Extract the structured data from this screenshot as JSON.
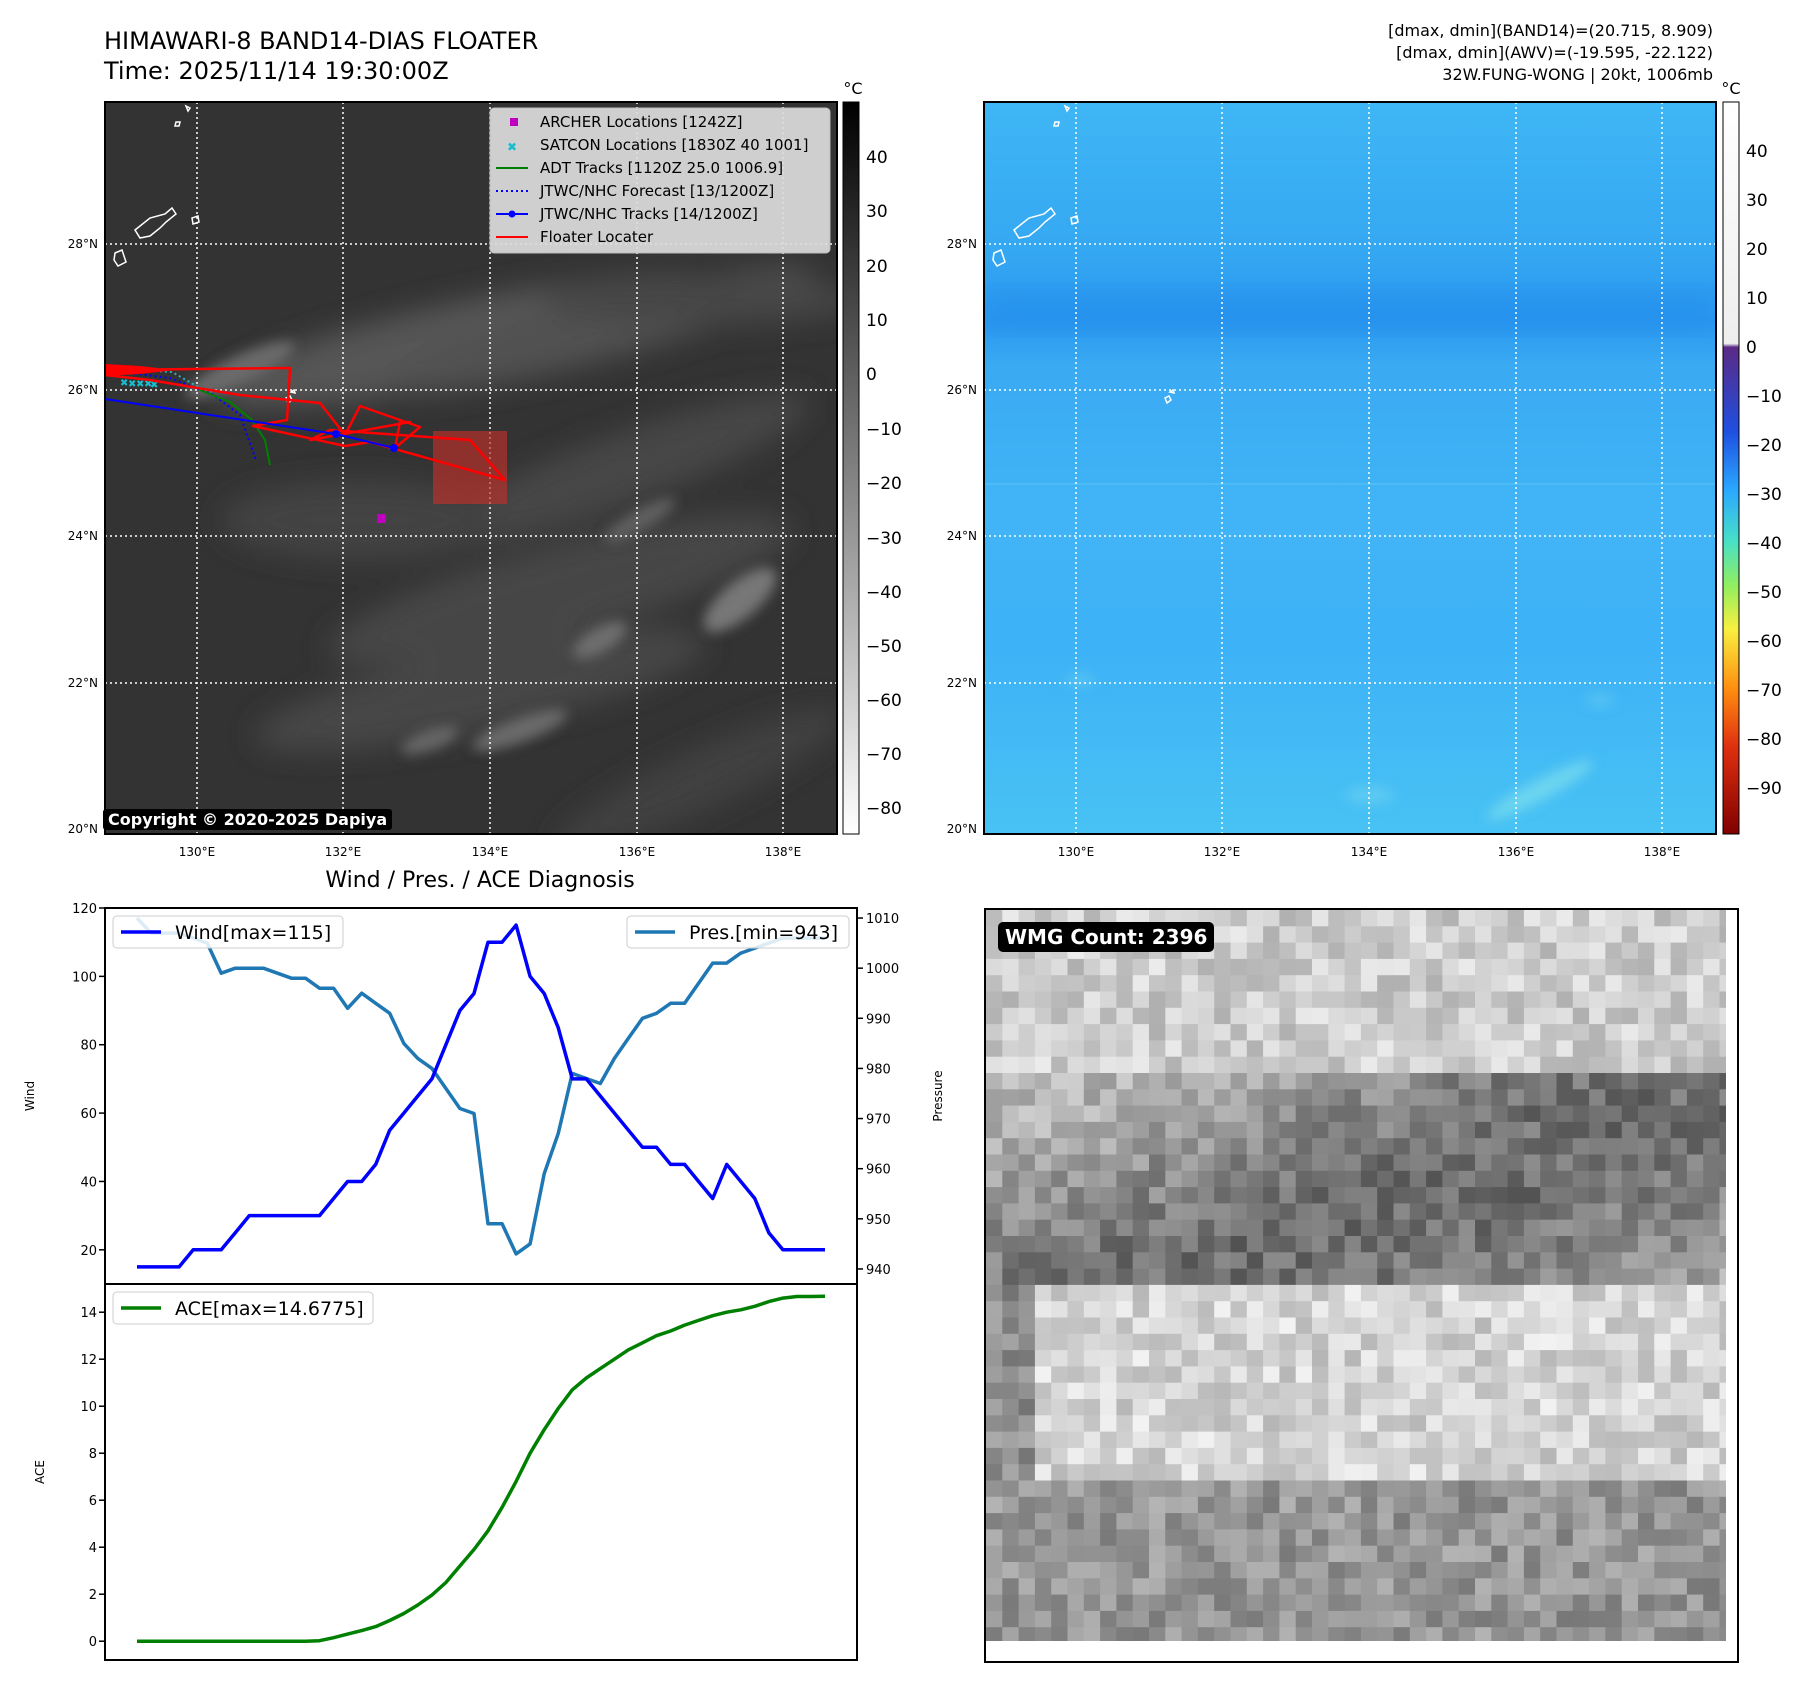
{
  "header": {
    "title_line1": "HIMAWARI-8 BAND14-DIAS FLOATER",
    "title_line2": "Time: 2025/11/14 19:30:00Z",
    "stats_line1": "[dmax, dmin](BAND14)=(20.715, 8.909)",
    "stats_line2": "[dmax, dmin](AWV)=(-19.595, -22.122)",
    "stats_line3": "32W.FUNG-WONG | 20kt, 1006mb"
  },
  "maps": {
    "lat_labels": [
      "28°N",
      "26°N",
      "24°N",
      "22°N",
      "20°N"
    ],
    "lon_labels": [
      "130°E",
      "132°E",
      "134°E",
      "136°E",
      "138°E"
    ],
    "copyright": "Copyright © 2020-2025 Dapiya",
    "colorbar_unit": "°C",
    "left_colorbar_ticks": [
      "40",
      "30",
      "20",
      "10",
      "0",
      "−10",
      "−20",
      "−30",
      "−40",
      "−50",
      "−60",
      "−70",
      "−80"
    ],
    "right_colorbar_ticks": [
      "40",
      "30",
      "20",
      "10",
      "0",
      "−10",
      "−20",
      "−30",
      "−40",
      "−50",
      "−60",
      "−70",
      "−80",
      "−90"
    ],
    "legend": [
      {
        "label": "ARCHER Locations [1242Z]",
        "color": "#c000c0"
      },
      {
        "label": "SATCON Locations [1830Z 40 1001]",
        "color": "#17becf"
      },
      {
        "label": "ADT Tracks [1120Z 25.0 1006.9]",
        "color": "#008000"
      },
      {
        "label": "JTWC/NHC Forecast [13/1200Z]",
        "color": "#0000ff"
      },
      {
        "label": "JTWC/NHC Tracks [14/1200Z]",
        "color": "#0000ff"
      },
      {
        "label": "Floater Locater",
        "color": "#ff0000"
      }
    ]
  },
  "wmg": {
    "label": "WMG Count: 2396"
  },
  "chart_data": [
    {
      "type": "line",
      "title": "Wind / Pres. / ACE Diagnosis",
      "ylabel": "Wind",
      "ylabel_right": "Pressure",
      "ylim": [
        10,
        120
      ],
      "ylim_right": [
        937,
        1012
      ],
      "yticks": [
        "20",
        "40",
        "60",
        "80",
        "100",
        "120"
      ],
      "yticks_right": [
        "940",
        "950",
        "960",
        "970",
        "980",
        "990",
        "1000",
        "1010"
      ],
      "series": [
        {
          "name": "Wind[max=115]",
          "color": "#0000ff",
          "axis": "left",
          "values": [
            15,
            15,
            15,
            15,
            20,
            20,
            20,
            25,
            30,
            30,
            30,
            30,
            30,
            30,
            35,
            40,
            40,
            45,
            55,
            60,
            65,
            70,
            80,
            90,
            95,
            110,
            110,
            115,
            100,
            95,
            85,
            70,
            70,
            65,
            60,
            55,
            50,
            50,
            45,
            45,
            40,
            35,
            45,
            40,
            35,
            25,
            20,
            20,
            20,
            20
          ]
        },
        {
          "name": "Pres.[min=943]",
          "color": "#1f77b4",
          "axis": "right",
          "values": [
            1010,
            1007,
            1007,
            1007,
            1006,
            1005,
            999,
            1000,
            1000,
            1000,
            999,
            998,
            998,
            996,
            996,
            992,
            995,
            993,
            991,
            985,
            982,
            980,
            976,
            972,
            971,
            949,
            949,
            943,
            945,
            959,
            967,
            979,
            978,
            977,
            982,
            986,
            990,
            991,
            993,
            993,
            997,
            1001,
            1001,
            1003,
            1004,
            1005,
            1006,
            1006,
            1006,
            1006
          ]
        }
      ]
    },
    {
      "type": "line",
      "ylabel": "ACE",
      "ylim": [
        -0.8,
        15.2
      ],
      "yticks": [
        "0",
        "2",
        "4",
        "6",
        "8",
        "10",
        "12",
        "14"
      ],
      "series": [
        {
          "name": "ACE[max=14.6775]",
          "color": "#008000",
          "values": [
            0,
            0,
            0,
            0,
            0,
            0,
            0,
            0,
            0,
            0,
            0,
            0,
            0,
            0.02,
            0.15,
            0.3,
            0.45,
            0.62,
            0.88,
            1.18,
            1.54,
            1.96,
            2.5,
            3.2,
            3.9,
            4.7,
            5.7,
            6.8,
            8.0,
            9.0,
            9.9,
            10.7,
            11.2,
            11.6,
            12.0,
            12.4,
            12.7,
            13.0,
            13.2,
            13.45,
            13.65,
            13.85,
            14.0,
            14.1,
            14.25,
            14.45,
            14.6,
            14.67,
            14.67,
            14.6775
          ]
        }
      ]
    }
  ]
}
